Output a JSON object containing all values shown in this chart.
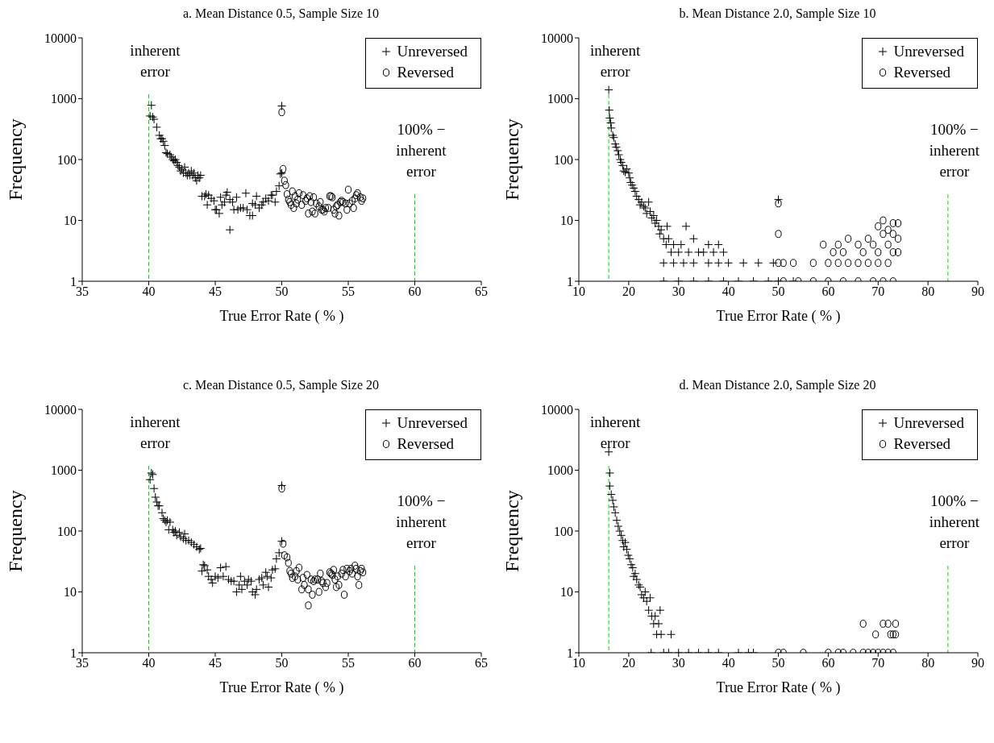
{
  "chart_data": [
    {
      "type": "scatter",
      "title": "a.  Mean Distance 0.5,  Sample Size 10",
      "xlabel": "True Error Rate  ( % )",
      "ylabel": "Frequency",
      "log": "y",
      "grid": false,
      "legend": "top right",
      "xlim": [
        35,
        65
      ],
      "xticks": [
        35,
        40,
        45,
        50,
        55,
        60,
        65
      ],
      "ylim": [
        1,
        10000
      ],
      "yticks": [
        1,
        10,
        100,
        1000,
        10000
      ],
      "ref_lines": [
        {
          "axis": "x",
          "value": 40,
          "label": "inherent error",
          "color": "#00dd00",
          "line_style": "dashed"
        },
        {
          "axis": "x",
          "value": 60,
          "label": "100% − inherent error",
          "color": "#00dd00",
          "line_style": "dashed"
        }
      ],
      "series": [
        {
          "name": "Unreversed",
          "color": "#000000",
          "marker": "cross",
          "x": [
            40.1,
            40.2,
            40.3,
            40.4,
            40.6,
            40.8,
            40.9,
            41.0,
            41.1,
            41.2,
            41.3,
            41.4,
            41.6,
            41.7,
            41.8,
            41.9,
            42.0,
            42.1,
            42.2,
            42.3,
            42.4,
            42.5,
            42.6,
            42.7,
            42.8,
            42.9,
            43.0,
            43.1,
            43.2,
            43.3,
            43.4,
            43.5,
            43.6,
            43.7,
            43.8,
            43.9,
            44.0,
            44.2,
            44.3,
            44.4,
            44.5,
            44.7,
            44.9,
            45.0,
            45.1,
            45.3,
            45.4,
            45.5,
            45.7,
            45.8,
            45.9,
            46.1,
            46.1,
            46.3,
            46.4,
            46.6,
            46.7,
            46.9,
            47.1,
            47.3,
            47.4,
            47.6,
            47.8,
            47.8,
            48.0,
            48.1,
            48.3,
            48.5,
            48.6,
            48.8,
            49.0,
            49.2,
            49.3,
            49.5,
            49.6,
            49.8,
            49.9,
            50.0,
            50.0
          ],
          "values": [
            520,
            780,
            500,
            460,
            340,
            250,
            220,
            220,
            200,
            170,
            130,
            125,
            120,
            110,
            100,
            95,
            100,
            90,
            80,
            75,
            65,
            70,
            60,
            75,
            60,
            55,
            60,
            55,
            65,
            55,
            60,
            50,
            45,
            55,
            50,
            55,
            25,
            25,
            27,
            18,
            26,
            23,
            21,
            15,
            15,
            13,
            24,
            18,
            20,
            26,
            29,
            7,
            22,
            20,
            15,
            24,
            15,
            16,
            16,
            28,
            15,
            12,
            12,
            19,
            18,
            25,
            16,
            18,
            20,
            23,
            21,
            26,
            26,
            20,
            30,
            37,
            58,
            760,
            60
          ]
        },
        {
          "name": "Reversed",
          "color": "#000000",
          "marker": "circle",
          "x": [
            50.0,
            50.1,
            50.2,
            50.3,
            50.4,
            50.5,
            50.6,
            50.7,
            50.8,
            50.9,
            51.0,
            51.1,
            51.2,
            51.3,
            51.5,
            51.6,
            51.8,
            51.9,
            52.0,
            52.1,
            52.2,
            52.3,
            52.4,
            52.5,
            52.6,
            52.8,
            52.9,
            53.0,
            53.1,
            53.2,
            53.3,
            53.5,
            53.6,
            53.7,
            53.8,
            53.9,
            54.0,
            54.1,
            54.2,
            54.3,
            54.4,
            54.5,
            54.6,
            54.8,
            54.9,
            55.0,
            55.1,
            55.3,
            55.4,
            55.5,
            55.6,
            55.7,
            55.9,
            56.0,
            56.1
          ],
          "values": [
            600,
            70,
            45,
            38,
            27,
            22,
            20,
            18,
            30,
            16,
            25,
            19,
            22,
            28,
            18,
            26,
            21,
            23,
            13,
            25,
            20,
            14,
            24,
            13,
            19,
            17,
            20,
            15,
            15,
            14,
            16,
            16,
            25,
            25,
            24,
            15,
            13,
            17,
            18,
            12,
            20,
            21,
            20,
            19,
            15,
            32,
            19,
            21,
            16,
            23,
            26,
            28,
            24,
            21,
            23
          ]
        }
      ]
    },
    {
      "type": "scatter",
      "title": "b.  Mean Distance 2.0,  Sample Size 10",
      "xlabel": "True Error Rate  ( % )",
      "ylabel": "Frequency",
      "log": "y",
      "grid": false,
      "legend": "top right",
      "xlim": [
        10,
        90
      ],
      "xticks": [
        10,
        20,
        30,
        40,
        50,
        60,
        70,
        80,
        90
      ],
      "ylim": [
        1,
        10000
      ],
      "yticks": [
        1,
        10,
        100,
        1000,
        10000
      ],
      "ref_lines": [
        {
          "axis": "x",
          "value": 16,
          "label": "inherent error",
          "color": "#00dd00",
          "line_style": "dashed"
        },
        {
          "axis": "x",
          "value": 84,
          "label": "100% − inherent error",
          "color": "#00dd00",
          "line_style": "dashed"
        }
      ],
      "series": [
        {
          "name": "Unreversed",
          "color": "#000000",
          "marker": "cross",
          "x": [
            16,
            16.1,
            16.2,
            16.4,
            16.5,
            16.8,
            17,
            17.3,
            17.5,
            17.8,
            18,
            18.3,
            18.5,
            18.8,
            19,
            19.3,
            19.6,
            20,
            20.2,
            20.4,
            20.7,
            21,
            21.3,
            21.6,
            22,
            22.3,
            22.6,
            23,
            23.3,
            23.6,
            24,
            24.3,
            24.6,
            25,
            25.3,
            25.6,
            26,
            26.2,
            26.5,
            27,
            27.5,
            27.7,
            28,
            28.5,
            29,
            30,
            30.5,
            31.5,
            32,
            33,
            34,
            35,
            36,
            37,
            38,
            39,
            27,
            29,
            31,
            33,
            36,
            38,
            40,
            43,
            46,
            49,
            27,
            30,
            33,
            36,
            39,
            42,
            45,
            48,
            50,
            53,
            50
          ],
          "values": [
            1400,
            650,
            480,
            400,
            330,
            250,
            230,
            180,
            160,
            140,
            120,
            100,
            90,
            80,
            65,
            62,
            70,
            60,
            50,
            42,
            38,
            34,
            30,
            25,
            22,
            18,
            20,
            17,
            16,
            13,
            20,
            14,
            11,
            12,
            9,
            10,
            8,
            6,
            7,
            5,
            4,
            8,
            5,
            3,
            4,
            3,
            4,
            8,
            3,
            5,
            3,
            3,
            4,
            3,
            4,
            3,
            2,
            2,
            2,
            2,
            2,
            2,
            2,
            2,
            2,
            2,
            1,
            1,
            1,
            1,
            1,
            1,
            1,
            1,
            1,
            1,
            22
          ]
        },
        {
          "name": "Reversed",
          "color": "#000000",
          "marker": "circle",
          "x": [
            50,
            50,
            50,
            51,
            53,
            57,
            60,
            62,
            64,
            66,
            68,
            70,
            72,
            59,
            61,
            62,
            63,
            64,
            66,
            67,
            68,
            69,
            70,
            70,
            71,
            71,
            72,
            72,
            73,
            73,
            73,
            74,
            74,
            74,
            51,
            54,
            57,
            60,
            63,
            66,
            69,
            71,
            73
          ],
          "values": [
            19,
            6,
            2,
            2,
            2,
            2,
            2,
            2,
            2,
            2,
            2,
            2,
            2,
            4,
            3,
            4,
            3,
            5,
            4,
            3,
            5,
            4,
            3,
            8,
            10,
            6,
            7,
            4,
            9,
            6,
            3,
            9,
            5,
            3,
            1,
            1,
            1,
            1,
            1,
            1,
            1,
            1,
            1
          ]
        }
      ]
    },
    {
      "type": "scatter",
      "title": "c.  Mean Distance 0.5,  Sample Size 20",
      "xlabel": "True Error Rate  ( % )",
      "ylabel": "Frequency",
      "log": "y",
      "grid": false,
      "legend": "top right",
      "xlim": [
        35,
        65
      ],
      "xticks": [
        35,
        40,
        45,
        50,
        55,
        60,
        65
      ],
      "ylim": [
        1,
        10000
      ],
      "yticks": [
        1,
        10,
        100,
        1000,
        10000
      ],
      "ref_lines": [
        {
          "axis": "x",
          "value": 40,
          "label": "inherent error",
          "color": "#00dd00",
          "line_style": "dashed"
        },
        {
          "axis": "x",
          "value": 60,
          "label": "100% − inherent error",
          "color": "#00dd00",
          "line_style": "dashed"
        }
      ],
      "series": [
        {
          "name": "Unreversed",
          "color": "#000000",
          "marker": "cross",
          "x": [
            40.1,
            40.2,
            40.3,
            40.4,
            40.5,
            40.6,
            40.7,
            40.8,
            41.0,
            41.1,
            41.2,
            41.3,
            41.4,
            41.5,
            41.6,
            41.8,
            41.9,
            42.0,
            42.1,
            42.3,
            42.4,
            42.6,
            42.7,
            42.8,
            43.0,
            43.2,
            43.4,
            43.6,
            43.8,
            43.9,
            44.0,
            44.1,
            44.2,
            44.4,
            44.5,
            44.7,
            44.8,
            45.0,
            45.2,
            45.4,
            45.6,
            45.8,
            46.0,
            46.2,
            46.4,
            46.6,
            46.8,
            46.9,
            47.0,
            47.2,
            47.4,
            47.5,
            47.7,
            47.8,
            48.0,
            48.1,
            48.3,
            48.5,
            48.6,
            48.8,
            48.9,
            49.0,
            49.2,
            49.3,
            49.5,
            49.6,
            49.8,
            50.0,
            50.0
          ],
          "values": [
            700,
            900,
            850,
            500,
            360,
            300,
            260,
            260,
            200,
            160,
            150,
            140,
            150,
            105,
            140,
            105,
            95,
            100,
            85,
            95,
            80,
            75,
            90,
            70,
            70,
            65,
            60,
            55,
            50,
            52,
            22,
            28,
            27,
            23,
            18,
            16,
            14,
            18,
            17,
            25,
            18,
            26,
            16,
            15,
            15,
            10,
            13,
            18,
            11,
            15,
            13,
            16,
            15,
            10,
            9,
            11,
            16,
            17,
            13,
            21,
            18,
            12,
            17,
            23,
            24,
            35,
            44,
            560,
            68
          ]
        },
        {
          "name": "Reversed",
          "color": "#000000",
          "marker": "circle",
          "x": [
            50.0,
            50.1,
            50.2,
            50.4,
            50.5,
            50.6,
            50.7,
            50.8,
            51.0,
            51.1,
            51.2,
            51.3,
            51.5,
            51.6,
            51.7,
            51.9,
            52.0,
            52.0,
            52.2,
            52.3,
            52.4,
            52.5,
            52.7,
            52.8,
            52.9,
            53.0,
            53.1,
            53.3,
            53.4,
            53.6,
            53.7,
            53.8,
            53.9,
            54.0,
            54.1,
            54.2,
            54.3,
            54.5,
            54.6,
            54.7,
            54.8,
            54.9,
            55.1,
            55.2,
            55.3,
            55.5,
            55.6,
            55.7,
            55.8,
            55.9,
            56.0,
            56.1
          ],
          "values": [
            500,
            62,
            40,
            37,
            30,
            22,
            20,
            17,
            18,
            22,
            16,
            25,
            11,
            17,
            13,
            19,
            11,
            6,
            16,
            9,
            15,
            16,
            16,
            10,
            20,
            15,
            14,
            12,
            14,
            21,
            20,
            19,
            23,
            16,
            12,
            18,
            13,
            20,
            23,
            9,
            18,
            24,
            22,
            24,
            20,
            27,
            24,
            18,
            13,
            22,
            24,
            21
          ]
        }
      ]
    },
    {
      "type": "scatter",
      "title": "d.  Mean Distance 2.0,  Sample Size 20",
      "xlabel": "True Error Rate  ( % )",
      "ylabel": "Frequency",
      "log": "y",
      "grid": false,
      "legend": "top right",
      "xlim": [
        10,
        90
      ],
      "xticks": [
        10,
        20,
        30,
        40,
        50,
        60,
        70,
        80,
        90
      ],
      "ylim": [
        1,
        10000
      ],
      "yticks": [
        1,
        10,
        100,
        1000,
        10000
      ],
      "ref_lines": [
        {
          "axis": "x",
          "value": 16,
          "label": "inherent error",
          "color": "#00dd00",
          "line_style": "dashed"
        },
        {
          "axis": "x",
          "value": 84,
          "label": "100% − inherent error",
          "color": "#00dd00",
          "line_style": "dashed"
        }
      ],
      "series": [
        {
          "name": "Unreversed",
          "color": "#000000",
          "marker": "cross",
          "x": [
            16,
            16.2,
            16.2,
            16.5,
            16.8,
            17,
            17.3,
            17.6,
            17.9,
            18.2,
            18.5,
            18.8,
            19,
            19.3,
            19.6,
            19.9,
            20.2,
            20.5,
            20.8,
            21,
            21.3,
            21.6,
            22,
            22.3,
            22.6,
            23,
            23.3,
            23.6,
            24,
            24.3,
            24.6,
            25,
            25.3,
            25.6,
            26,
            26.3,
            26.5,
            28.5,
            24.5,
            27,
            28,
            30,
            32,
            34,
            36,
            38,
            42,
            44,
            45
          ],
          "values": [
            2000,
            900,
            550,
            400,
            320,
            250,
            200,
            150,
            120,
            100,
            85,
            70,
            55,
            65,
            50,
            40,
            35,
            28,
            25,
            18,
            20,
            16,
            13,
            12,
            9,
            8,
            10,
            7,
            5,
            8,
            4,
            3,
            4,
            2,
            3,
            5,
            2,
            2,
            1,
            1,
            1,
            1,
            1,
            1,
            1,
            1,
            1,
            1,
            1
          ]
        },
        {
          "name": "Reversed",
          "color": "#000000",
          "marker": "circle",
          "x": [
            50,
            51,
            55,
            60,
            62,
            63,
            65,
            67,
            68,
            69,
            70,
            71,
            72,
            73,
            67,
            71,
            72,
            73.5,
            69.5,
            72.5,
            73,
            73.5
          ],
          "values": [
            1,
            1,
            1,
            1,
            1,
            1,
            1,
            1,
            1,
            1,
            1,
            1,
            1,
            1,
            3,
            3,
            3,
            3,
            2,
            2,
            2,
            2
          ]
        }
      ]
    }
  ]
}
